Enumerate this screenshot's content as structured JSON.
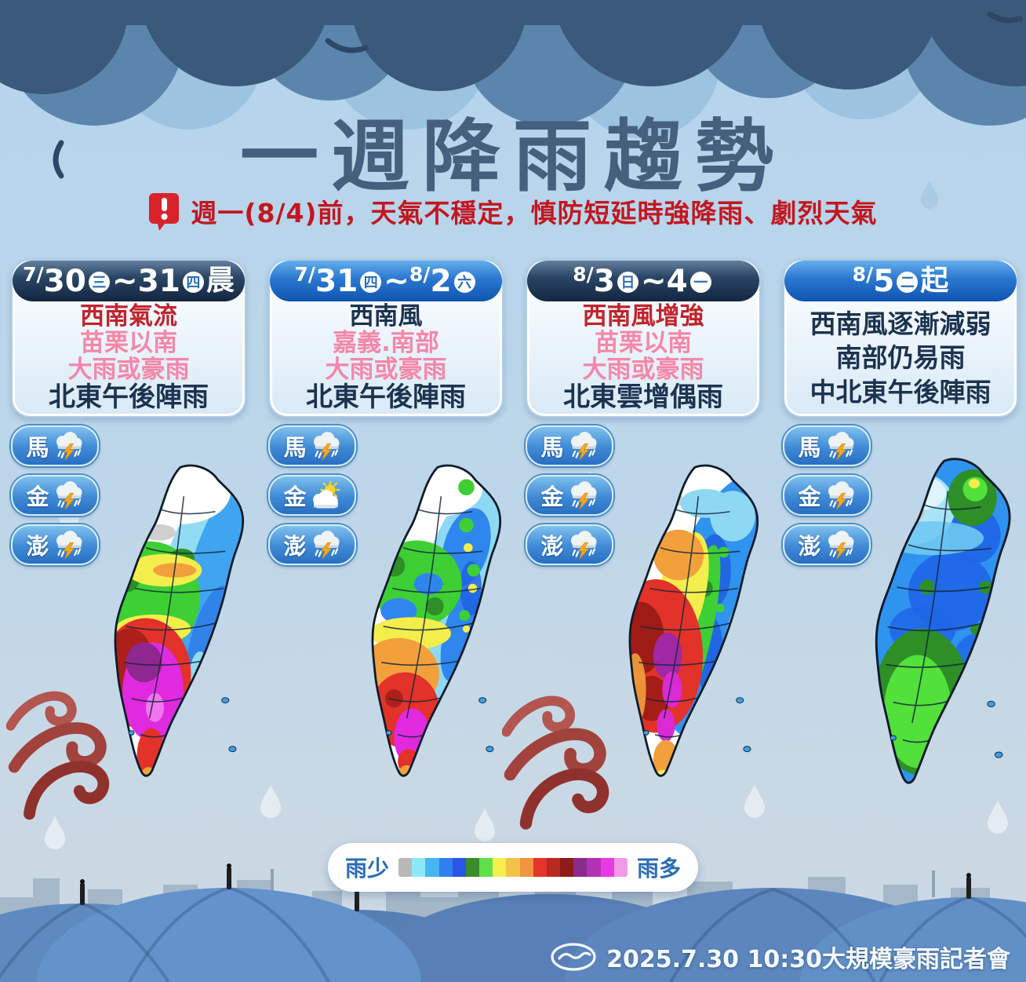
{
  "title": "一週降雨趨勢",
  "warning": {
    "text": "週一(8/4)前，天氣不穩定，慎防短延時強降雨、劇烈天氣"
  },
  "columns": [
    {
      "header": [
        "7/",
        "30",
        "三",
        "~",
        "31",
        "四",
        "晨"
      ],
      "lines": [
        {
          "text": "西南氣流",
          "tone": "red"
        },
        {
          "text": "苗栗以南",
          "tone": "pink"
        },
        {
          "text": "大雨或豪雨",
          "tone": "pink"
        },
        {
          "text": "北東午後陣雨",
          "tone": "navy"
        }
      ],
      "islands": [
        {
          "name": "馬",
          "weather": "thunderstorm"
        },
        {
          "name": "金",
          "weather": "thunderstorm"
        },
        {
          "name": "澎",
          "weather": "thunderstorm"
        }
      ],
      "map_summary": "西南部紫紅色雨量極多，中西部綠黃橙，北部與東部雨少"
    },
    {
      "header": [
        "7/",
        "31",
        "四",
        "~",
        "8/",
        "2",
        "六"
      ],
      "lines": [
        {
          "text": "西南風",
          "tone": "navy"
        },
        {
          "text": "嘉義.南部",
          "tone": "pink"
        },
        {
          "text": "大雨或豪雨",
          "tone": "pink"
        },
        {
          "text": "北東午後陣雨",
          "tone": "navy"
        }
      ],
      "islands": [
        {
          "name": "馬",
          "weather": "thunderstorm"
        },
        {
          "name": "金",
          "weather": "partly-sunny"
        },
        {
          "name": "澎",
          "weather": "thunderstorm"
        }
      ],
      "map_summary": "南部橙紅大雨、恆春半島紫紅，中部藍綠相間，北部雨少"
    },
    {
      "header": [
        "8/",
        "3",
        "日",
        "~",
        "4",
        "一"
      ],
      "lines": [
        {
          "text": "西南風增強",
          "tone": "red"
        },
        {
          "text": "苗栗以南",
          "tone": "pink"
        },
        {
          "text": "大雨或豪雨",
          "tone": "pink"
        },
        {
          "text": "北東雲增偶雨",
          "tone": "navy"
        }
      ],
      "islands": [
        {
          "name": "馬",
          "weather": "thunderstorm"
        },
        {
          "name": "金",
          "weather": "thunderstorm"
        },
        {
          "name": "澎",
          "weather": "thunderstorm"
        }
      ],
      "map_summary": "西南部大範圍紅色與紫色雨量極多，東半部藍色"
    },
    {
      "header": [
        "8/",
        "5",
        "二",
        "起"
      ],
      "lines": [
        {
          "text": "西南風逐漸減弱",
          "tone": "navy"
        },
        {
          "text": "南部仍易雨",
          "tone": "navy"
        },
        {
          "text": "中北東午後陣雨",
          "tone": "navy"
        }
      ],
      "islands": [
        {
          "name": "馬",
          "weather": "thunderstorm"
        },
        {
          "name": "金",
          "weather": "thunderstorm"
        },
        {
          "name": "澎",
          "weather": "thunderstorm"
        }
      ],
      "map_summary": "全台以藍色為主，南部綠色易雨，東北角局部綠黃"
    }
  ],
  "legend": {
    "less_label": "雨少",
    "more_label": "雨多",
    "colors": [
      "#b9b9b9",
      "#8ae9f7",
      "#49b5f2",
      "#2f80f0",
      "#2b55e6",
      "#3a8c2c",
      "#62e04a",
      "#f5ee4d",
      "#f2c24a",
      "#f0953e",
      "#e5352b",
      "#ba2823",
      "#8e1b17",
      "#8c2b8e",
      "#b232b4",
      "#e83ae4",
      "#f29ae8"
    ]
  },
  "footer": {
    "text": "2025.7.30 10:30大規模豪雨記者會"
  }
}
